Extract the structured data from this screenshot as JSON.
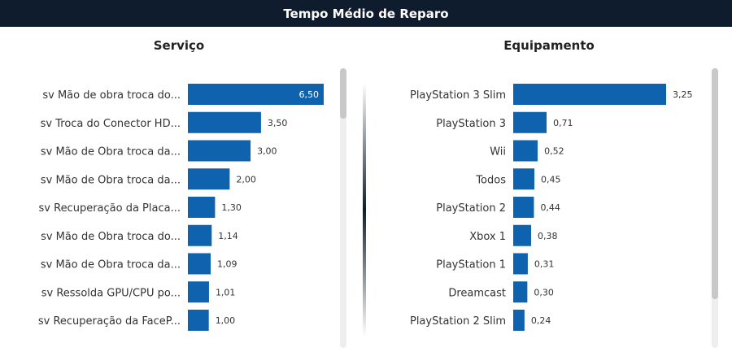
{
  "title": "Tempo Médio de Reparo",
  "colors": {
    "bar": "#0f62ae",
    "header": "#0f1c2e"
  },
  "chart_data": [
    {
      "type": "bar",
      "orientation": "horizontal",
      "title": "Serviço",
      "categories": [
        "sv Mão de obra troca do...",
        "sv Troca do Conector HD...",
        "sv Mão de Obra troca da...",
        "sv Mão de Obra troca da...",
        "sv Recuperação da Placa...",
        "sv Mão de Obra troca do...",
        "sv Mão de Obra troca da...",
        "sv Ressolda GPU/CPU po...",
        "sv Recuperação da FaceP..."
      ],
      "values": [
        6.5,
        3.5,
        3.0,
        2.0,
        1.3,
        1.14,
        1.09,
        1.01,
        1.0
      ],
      "value_labels": [
        "6,50",
        "3,50",
        "3,00",
        "2,00",
        "1,30",
        "1,14",
        "1,09",
        "1,01",
        "1,00"
      ],
      "xlim": [
        0,
        6.5
      ]
    },
    {
      "type": "bar",
      "orientation": "horizontal",
      "title": "Equipamento",
      "categories": [
        "PlayStation 3 Slim",
        "PlayStation 3",
        "Wii",
        "Todos",
        "PlayStation 2",
        "Xbox 1",
        "PlayStation 1",
        "Dreamcast",
        "PlayStation 2 Slim"
      ],
      "values": [
        3.25,
        0.71,
        0.52,
        0.45,
        0.44,
        0.38,
        0.31,
        0.3,
        0.24
      ],
      "value_labels": [
        "3,25",
        "0,71",
        "0,52",
        "0,45",
        "0,44",
        "0,38",
        "0,31",
        "0,30",
        "0,24"
      ],
      "xlim": [
        0,
        3.25
      ]
    }
  ]
}
